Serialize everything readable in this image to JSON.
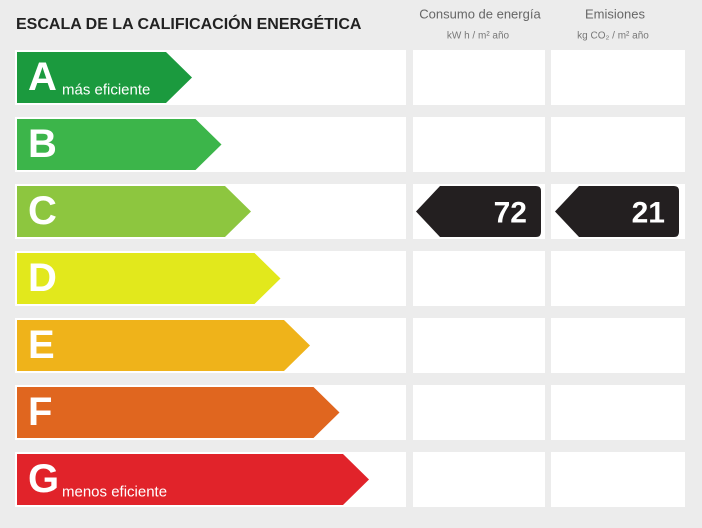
{
  "header": {
    "title": "ESCALA DE LA CALIFICACIÓN ENERGÉTICA"
  },
  "columns": [
    {
      "title": "Consumo de energía",
      "unit": "kW h / m² año"
    },
    {
      "title": "Emisiones",
      "unit": "kg CO₂ / m² año"
    }
  ],
  "rows": [
    {
      "letter": "A",
      "label": "más eficiente",
      "color": "#1b9a3e"
    },
    {
      "letter": "B",
      "color": "#3cb54a"
    },
    {
      "letter": "C",
      "color": "#8dc63f",
      "consumption": 72,
      "emissions": 21
    },
    {
      "letter": "D",
      "color": "#e2e81c"
    },
    {
      "letter": "E",
      "color": "#efb31a"
    },
    {
      "letter": "F",
      "color": "#e0661f"
    },
    {
      "letter": "G",
      "label": "menos eficiente",
      "color": "#e1232a"
    }
  ]
}
